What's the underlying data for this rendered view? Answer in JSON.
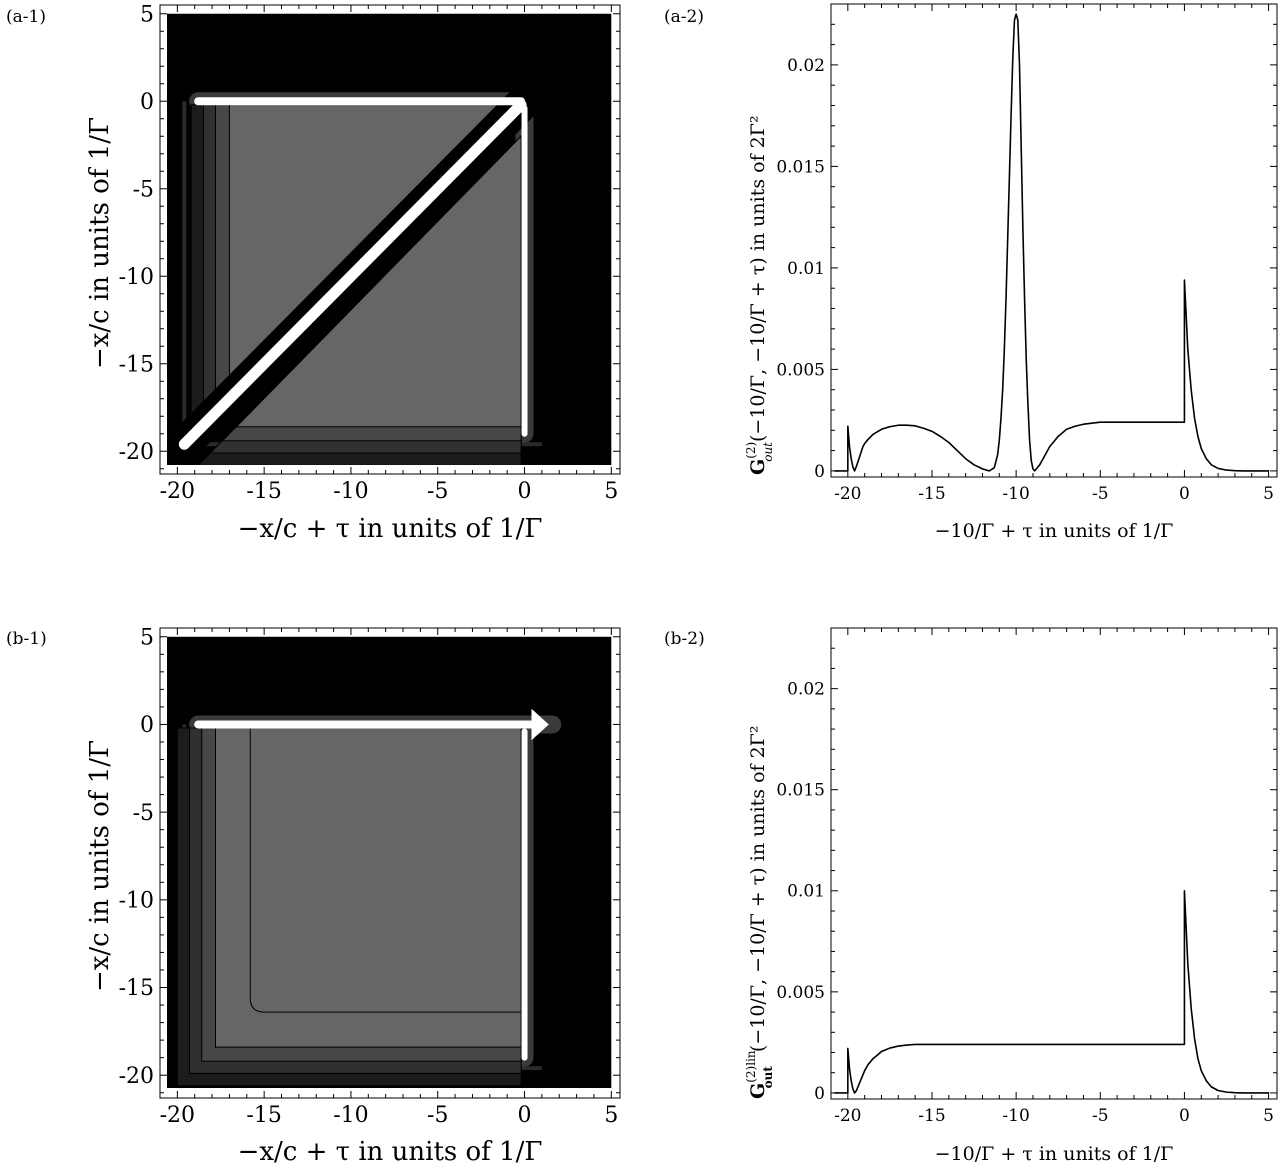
{
  "chart_data": [
    {
      "id": "a1",
      "panel_label": "(a-1)",
      "type": "heatmap",
      "xlabel": "−x/c + τ in units of 1/Γ",
      "ylabel": "−x/c in units of 1/Γ",
      "xlim": [
        -21,
        5.5
      ],
      "ylim": [
        -21.3,
        5.5
      ],
      "data_region": [
        -21,
        5,
        -21,
        5
      ],
      "x_ticks": [
        -20,
        -15,
        -10,
        -5,
        0,
        5
      ],
      "y_ticks": [
        -20,
        -15,
        -10,
        -5,
        0,
        5
      ],
      "x_tick_labels": [
        "-20",
        "-15",
        "-10",
        "-5",
        "0",
        "5"
      ],
      "y_tick_labels": [
        "-20",
        "-15",
        "-10",
        "-5",
        "0",
        "5"
      ],
      "colors": {
        "background": "#000000",
        "levels": [
          "#1c1c1c",
          "#303030",
          "#474747",
          "#666666"
        ],
        "peak": "#ffffff",
        "contour": "#000000"
      },
      "features": {
        "upper_triangle": {
          "vertices": [
            [
              -17,
              -0.2
            ],
            [
              -0.6,
              -0.2
            ],
            [
              -17,
              -16.4
            ]
          ],
          "levels": 4
        },
        "lower_triangle": {
          "vertices": [
            [
              -16.6,
              -18.6
            ],
            [
              -0.2,
              -18.6
            ],
            [
              -0.2,
              -2.0
            ]
          ],
          "levels": 4
        },
        "diagonal_ridge": {
          "from": [
            -19.6,
            -19.6
          ],
          "to": [
            -0.2,
            -0.2
          ]
        },
        "horizontal_ridge": {
          "from": [
            -18.8,
            0
          ],
          "to": [
            -0.2,
            0
          ]
        },
        "vertical_ridge": {
          "from": [
            0,
            -0.4
          ],
          "to": [
            0,
            -19.0
          ]
        },
        "edge_lines": {
          "left_x": -19.6,
          "bottom_y": -19.6
        }
      }
    },
    {
      "id": "a2",
      "panel_label": "(a-2)",
      "type": "line",
      "xlabel": "−10/Γ + τ in units of 1/Γ",
      "ylabel": "G(2) out (−10/Γ, −10/Γ + τ) in units of 2Γ²",
      "ylabel_text_1": "(−10/Γ, −10/Γ + τ) in units of 2Γ²",
      "ylabel_sym": "G",
      "ylabel_sup": "(2)",
      "ylabel_sub": "out",
      "xlim": [
        -21,
        5.5
      ],
      "ylim": [
        -0.0003,
        0.023
      ],
      "x_ticks": [
        -20,
        -15,
        -10,
        -5,
        0,
        5
      ],
      "y_ticks": [
        0,
        0.005,
        0.01,
        0.015,
        0.02
      ],
      "x_tick_labels": [
        "-20",
        "-15",
        "-10",
        "-5",
        "0",
        "5"
      ],
      "y_tick_labels": [
        "0",
        "0.005",
        "0.01",
        "0.015",
        "0.02"
      ],
      "series": [
        {
          "x": [
            -20.8,
            -20,
            -20,
            -19.9,
            -19.8,
            -19.7,
            -19.6,
            -19.5,
            -19.4,
            -19.3,
            -19.2,
            -19.1,
            -19.0,
            -18.8,
            -18.5,
            -18.0,
            -17.5,
            -17.0,
            -16.5,
            -16.0,
            -15.5,
            -15.0,
            -14.5,
            -14.0,
            -13.5,
            -13.0,
            -12.5,
            -12.0,
            -11.6,
            -11.3,
            -11.1,
            -11.0,
            -10.9,
            -10.8,
            -10.7,
            -10.6,
            -10.5,
            -10.4,
            -10.3,
            -10.2,
            -10.1,
            -10.0,
            -9.9,
            -9.8,
            -9.7,
            -9.6,
            -9.5,
            -9.4,
            -9.3,
            -9.2,
            -9.1,
            -9.0,
            -8.9,
            -8.8,
            -8.6,
            -8.4,
            -8.0,
            -7.5,
            -7.0,
            -6.5,
            -6.0,
            -5.5,
            -5.0,
            -4.0,
            -3.0,
            -2.0,
            -1.0,
            0,
            0,
            0.2,
            0.4,
            0.6,
            0.8,
            1.0,
            1.3,
            1.6,
            2.0,
            2.5,
            3.0,
            3.5,
            4.0,
            5.0
          ],
          "y": [
            0,
            0,
            0.0022,
            0.0012,
            0.0006,
            0.0002,
            0,
            0.0002,
            0.00045,
            0.0007,
            0.00095,
            0.0012,
            0.00135,
            0.00155,
            0.0018,
            0.00205,
            0.00218,
            0.00225,
            0.00225,
            0.00222,
            0.0021,
            0.00195,
            0.0017,
            0.0014,
            0.001,
            0.0006,
            0.0003,
            0.0001,
            0,
            0.00015,
            0.0008,
            0.0015,
            0.0026,
            0.004,
            0.006,
            0.0085,
            0.0115,
            0.0145,
            0.0175,
            0.0203,
            0.0222,
            0.0225,
            0.0222,
            0.02,
            0.016,
            0.012,
            0.0085,
            0.0055,
            0.0033,
            0.0015,
            0.0005,
            0.0001,
            0,
            0.0001,
            0.0003,
            0.0006,
            0.0012,
            0.0017,
            0.00205,
            0.0022,
            0.0023,
            0.00235,
            0.0024,
            0.0024,
            0.0024,
            0.0024,
            0.0024,
            0.0024,
            0.0094,
            0.006,
            0.004,
            0.0026,
            0.0017,
            0.0011,
            0.0006,
            0.0003,
            0.00012,
            4e-05,
            1e-05,
            0,
            0,
            0
          ]
        }
      ]
    },
    {
      "id": "b1",
      "panel_label": "(b-1)",
      "type": "heatmap",
      "xlabel": "−x/c + τ in units of 1/Γ",
      "ylabel": "−x/c in units of 1/Γ",
      "xlim": [
        -21,
        5.5
      ],
      "ylim": [
        -21.3,
        5.5
      ],
      "data_region": [
        -21,
        5,
        -21,
        5
      ],
      "x_ticks": [
        -20,
        -15,
        -10,
        -5,
        0,
        5
      ],
      "y_ticks": [
        -20,
        -15,
        -10,
        -5,
        0,
        5
      ],
      "x_tick_labels": [
        "-20",
        "-15",
        "-10",
        "-5",
        "0",
        "5"
      ],
      "y_tick_labels": [
        "-20",
        "-15",
        "-10",
        "-5",
        "0",
        "5"
      ],
      "colors": {
        "background": "#000000",
        "levels": [
          "#1c1c1c",
          "#303030",
          "#474747",
          "#666666"
        ],
        "peak": "#ffffff",
        "contour": "#000000"
      },
      "features": {
        "square": {
          "from": [
            -17.8,
            -0.2
          ],
          "to": [
            -0.2,
            -18.4
          ],
          "levels": 4
        },
        "horizontal_ridge": {
          "from": [
            -18.8,
            0
          ],
          "to": [
            0.8,
            0
          ]
        },
        "vertical_ridge": {
          "from": [
            0,
            -0.4
          ],
          "to": [
            0,
            -19.0
          ]
        },
        "arrow_tip": [
          1.4,
          0
        ],
        "edge_lines": {
          "left_x": -19.6,
          "bottom_y": -19.6
        }
      }
    },
    {
      "id": "b2",
      "panel_label": "(b-2)",
      "type": "line",
      "xlabel": "−10/Γ + τ in units of 1/Γ",
      "ylabel": "G(2)lin out (−10/Γ, −10/Γ + τ) in units of 2Γ²",
      "ylabel_text_1": "(−10/Γ, −10/Γ + τ) in units of 2Γ²",
      "ylabel_sym": "G",
      "ylabel_sup": "(2)lin",
      "ylabel_sub": "out",
      "xlim": [
        -21,
        5.5
      ],
      "ylim": [
        -0.0003,
        0.023
      ],
      "x_ticks": [
        -20,
        -15,
        -10,
        -5,
        0,
        5
      ],
      "y_ticks": [
        0,
        0.005,
        0.01,
        0.015,
        0.02
      ],
      "x_tick_labels": [
        "-20",
        "-15",
        "-10",
        "-5",
        "0",
        "5"
      ],
      "y_tick_labels": [
        "0",
        "0.005",
        "0.01",
        "0.015",
        "0.02"
      ],
      "series": [
        {
          "x": [
            -20.8,
            -20,
            -20,
            -19.9,
            -19.8,
            -19.7,
            -19.6,
            -19.5,
            -19.4,
            -19.2,
            -19.0,
            -18.8,
            -18.5,
            -18.2,
            -18.0,
            -17.5,
            -17.0,
            -16.5,
            -16.0,
            -15.0,
            -14.0,
            -12.0,
            -10.0,
            -5.0,
            -1.0,
            0,
            0,
            0.2,
            0.4,
            0.6,
            0.8,
            1.0,
            1.3,
            1.6,
            2.0,
            2.5,
            3.0,
            3.5,
            4.0,
            5.0
          ],
          "y": [
            0,
            0,
            0.0022,
            0.0012,
            0.0006,
            0.0002,
            0,
            0.0001,
            0.0003,
            0.0007,
            0.0011,
            0.0014,
            0.0017,
            0.0019,
            0.00205,
            0.00222,
            0.00232,
            0.00237,
            0.0024,
            0.0024,
            0.0024,
            0.0024,
            0.0024,
            0.0024,
            0.0024,
            0.0024,
            0.01,
            0.0064,
            0.0042,
            0.0027,
            0.0017,
            0.0011,
            0.0006,
            0.0003,
            0.00012,
            4e-05,
            1e-05,
            0,
            0,
            0
          ]
        }
      ]
    }
  ]
}
